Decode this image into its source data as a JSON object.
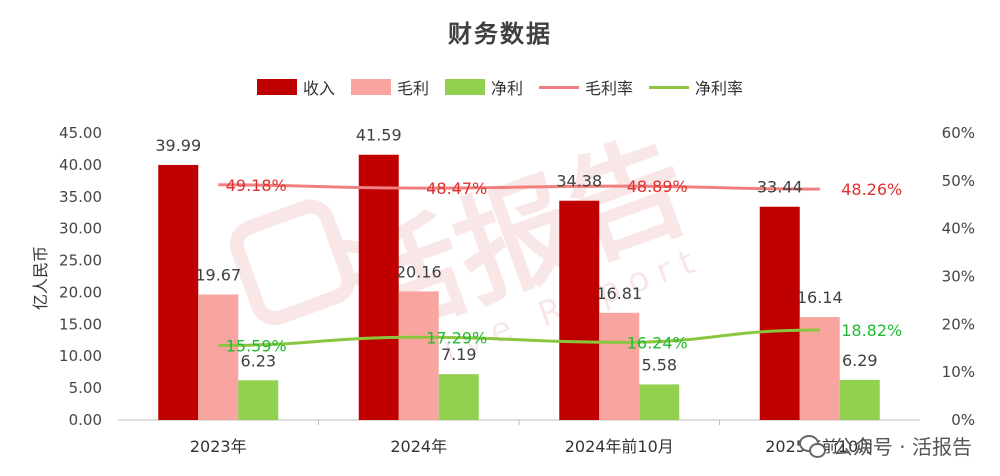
{
  "chart_data": {
    "type": "bar",
    "title": "财务数据",
    "ylabel": "亿人民币",
    "ylim": [
      0,
      45
    ],
    "y_ticks": [
      "0.00",
      "5.00",
      "10.00",
      "15.00",
      "20.00",
      "25.00",
      "30.00",
      "35.00",
      "40.00",
      "45.00"
    ],
    "y2lim": [
      0,
      60
    ],
    "y2_ticks": [
      "0%",
      "10%",
      "20%",
      "30%",
      "40%",
      "50%",
      "60%"
    ],
    "categories": [
      "2023年",
      "2024年",
      "2024年前10月",
      "2025年前10月"
    ],
    "legend_position": "top-center",
    "grid": false,
    "series": [
      {
        "name": "收入",
        "kind": "bar",
        "axis": "left",
        "color": "#c00000",
        "values": [
          39.99,
          41.59,
          34.38,
          33.44
        ],
        "labels": [
          "39.99",
          "41.59",
          "34.38",
          "33.44"
        ]
      },
      {
        "name": "毛利",
        "kind": "bar",
        "axis": "left",
        "color": "#f8a59f",
        "values": [
          19.67,
          20.16,
          16.81,
          16.14
        ],
        "labels": [
          "19.67",
          "20.16",
          "16.81",
          "16.14"
        ]
      },
      {
        "name": "净利",
        "kind": "bar",
        "axis": "left",
        "color": "#92d050",
        "values": [
          6.23,
          7.19,
          5.58,
          6.29
        ],
        "labels": [
          "6.23",
          "7.19",
          "5.58",
          "6.29"
        ]
      },
      {
        "name": "毛利率",
        "kind": "line",
        "axis": "right",
        "color": "#f08080",
        "label_color": "#e03030",
        "values": [
          49.18,
          48.47,
          48.89,
          48.26
        ],
        "labels": [
          "49.18%",
          "48.47%",
          "48.89%",
          "48.26%"
        ]
      },
      {
        "name": "净利率",
        "kind": "line",
        "axis": "right",
        "color": "#8cc63f",
        "label_color": "#22bb33",
        "values": [
          15.59,
          17.29,
          16.24,
          18.82
        ],
        "labels": [
          "15.59%",
          "17.29%",
          "16.24%",
          "18.82%"
        ]
      }
    ]
  },
  "footer": {
    "brand": "公众号 · 活报告"
  },
  "watermark": {
    "text": "活报告",
    "sub": "Live Report"
  }
}
